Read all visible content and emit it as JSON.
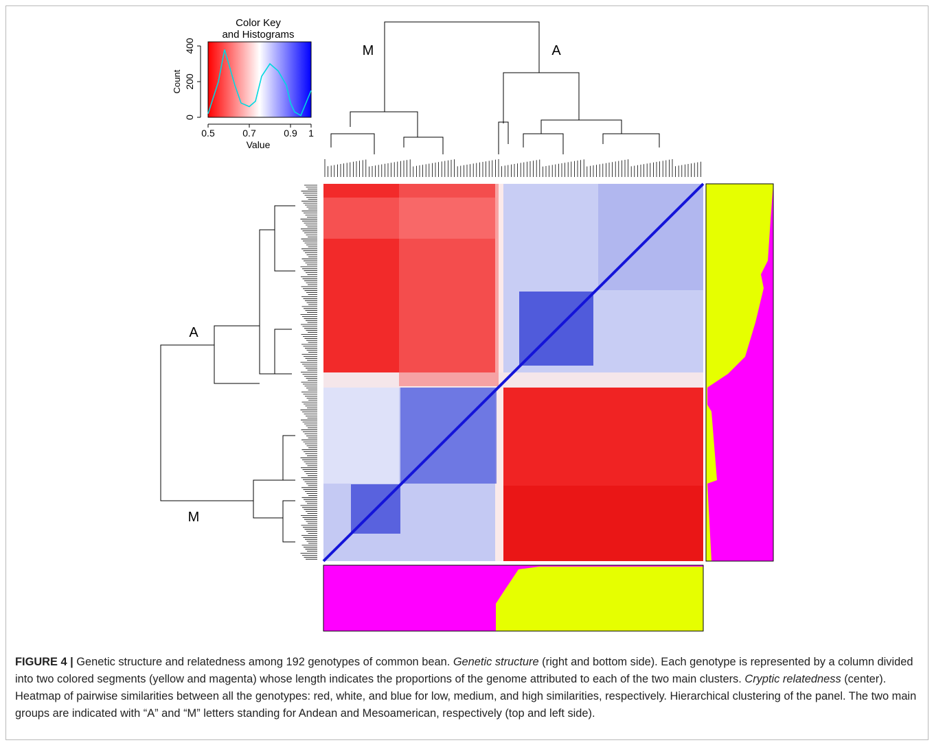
{
  "figure": {
    "color_key": {
      "title_line1": "Color Key",
      "title_line2": "and Histograms",
      "y_label": "Count",
      "x_label": "Value",
      "y_ticks": [
        "0",
        "200",
        "400"
      ],
      "x_ticks": [
        "0.5",
        "0.7",
        "0.9",
        "1"
      ],
      "gradient": [
        "#ff0000",
        "#ffffff",
        "#0000ff"
      ],
      "histogram_color": "#00d8e0"
    },
    "top_labels": {
      "left": "M",
      "right": "A"
    },
    "left_labels": {
      "upper": "A",
      "lower": "M"
    },
    "structure_colors": {
      "yellow": "#e6ff00",
      "magenta": "#ff00ff"
    }
  },
  "chart_data": {
    "type": "heatmap",
    "title": "",
    "genotypes": 192,
    "clusters": [
      "A",
      "M"
    ],
    "color_scale": {
      "low": "#ff0000",
      "mid": "#ffffff",
      "high": "#0000ff",
      "range": [
        0.5,
        1
      ]
    },
    "histogram": {
      "x": [
        0.5,
        0.55,
        0.58,
        0.6,
        0.63,
        0.66,
        0.7,
        0.73,
        0.76,
        0.8,
        0.84,
        0.88,
        0.9,
        0.92,
        0.95,
        1.0
      ],
      "count": [
        20,
        200,
        380,
        300,
        180,
        80,
        60,
        90,
        230,
        300,
        260,
        180,
        80,
        30,
        10,
        150
      ],
      "ylim": [
        0,
        400
      ],
      "xlim": [
        0.5,
        1
      ]
    }
  },
  "caption": {
    "label": "FIGURE 4 |",
    "s1": " Genetic structure and relatedness among 192 genotypes of common bean. ",
    "i1": "Genetic structure",
    "s2": " (right and bottom side). Each genotype is represented by a column divided into two colored segments (yellow and magenta) whose length indicates the proportions of the genome attributed to each of the two main clusters. ",
    "i2": "Cryptic relatedness",
    "s3": " (center). Heatmap of pairwise similarities between all the genotypes: red, white, and blue for low, medium, and high similarities, respectively. Hierarchical clustering of the panel. The two main groups are indicated with “A” and “M” letters standing for Andean and Mesoamerican, respectively (top and left side)."
  }
}
